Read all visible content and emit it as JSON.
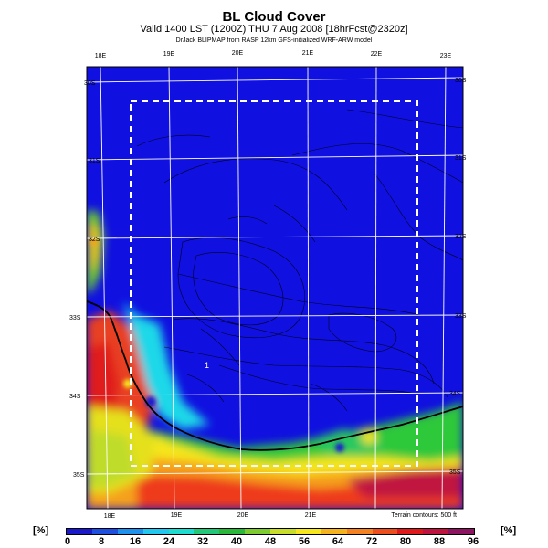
{
  "header": {
    "title": "BL Cloud Cover",
    "subtitle": "Valid 1400 LST (1200Z) THU 7 Aug 2008 [18hrFcst@2320z]",
    "subtitle2": "DrJack BLIPMAP from RASP 12km GFS-initialized WRF-ARW model"
  },
  "map": {
    "top_lon_labels": [
      "18E",
      "19E",
      "20E",
      "21E",
      "22E",
      "23E"
    ],
    "bottom_lon_labels": [
      "18E",
      "19E",
      "20E",
      "21E"
    ],
    "left_lat_labels": [
      "30S",
      "31S",
      "32S",
      "33S",
      "34S",
      "35S"
    ],
    "right_lat_labels": [
      "30S",
      "31S",
      "32S",
      "33S",
      "34S",
      "35S"
    ],
    "spot_label": "1",
    "terrain_note": "Terrain contours: 500 ft"
  },
  "colorbar": {
    "unit_left": "[%]",
    "unit_right": "[%]",
    "ticks": [
      "0",
      "8",
      "16",
      "24",
      "32",
      "40",
      "48",
      "56",
      "64",
      "72",
      "80",
      "88",
      "96"
    ],
    "colors": [
      "#1a1acc",
      "#1f4fe0",
      "#1e90ee",
      "#22c8f0",
      "#1fdcd0",
      "#22c878",
      "#2ab83a",
      "#7ccc30",
      "#c8dc2a",
      "#f5e61e",
      "#f5b41e",
      "#f58220",
      "#ee4d1e",
      "#e01a1a",
      "#c01440",
      "#8c1460"
    ]
  }
}
